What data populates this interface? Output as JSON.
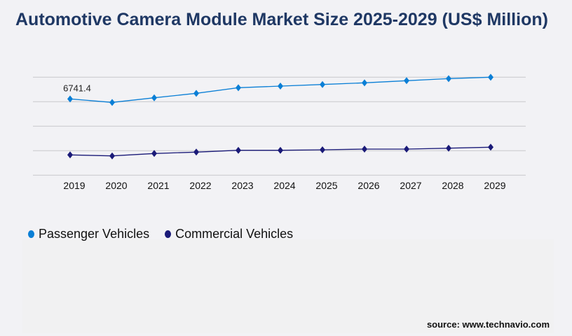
{
  "chart_data": {
    "type": "line",
    "title": "Automotive Camera Module Market Size 2025-2029 (US$ Million)",
    "categories": [
      "2019",
      "2020",
      "2021",
      "2022",
      "2023",
      "2024",
      "2025",
      "2026",
      "2027",
      "2028",
      "2029"
    ],
    "series": [
      {
        "name": "Passenger Vehicles",
        "color": "#0a7fd6",
        "values": [
          6741.4,
          6432,
          6841,
          7236,
          7731,
          7874,
          8016,
          8164,
          8350,
          8535,
          8659
        ]
      },
      {
        "name": "Commercial Vehicles",
        "color": "#1a1a78",
        "values": [
          1794,
          1707,
          1917,
          2041,
          2202,
          2202,
          2245,
          2307,
          2307,
          2387,
          2474
        ]
      }
    ],
    "data_labels": [
      {
        "series": 0,
        "index": 0,
        "text": "6741.4"
      }
    ],
    "ylim": [
      0,
      8660
    ],
    "grid": true,
    "y_tick_labels_shown": false,
    "legend": "bottom-left",
    "marker": "diamond"
  },
  "source": "source: www.technavio.com"
}
